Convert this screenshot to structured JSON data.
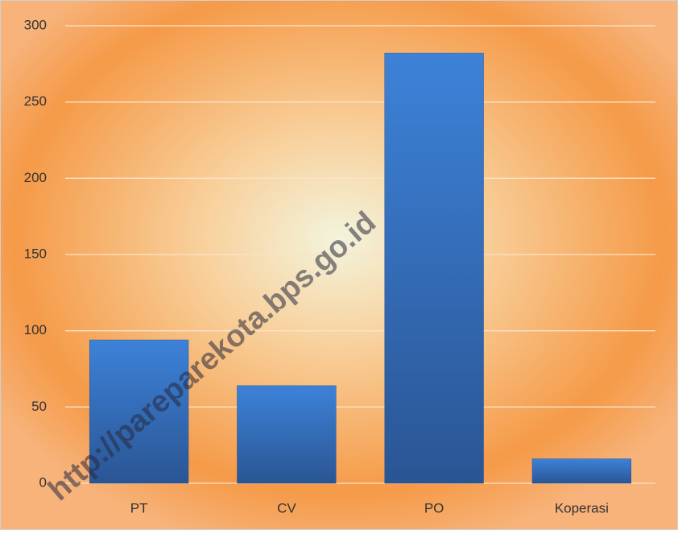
{
  "chart_data": {
    "type": "bar",
    "categories": [
      "PT",
      "CV",
      "PO",
      "Koperasi"
    ],
    "values": [
      94,
      64,
      282,
      16
    ],
    "color": "#3a78c9",
    "ylim": [
      0,
      300
    ],
    "yticks": [
      0,
      50,
      100,
      150,
      200,
      250,
      300
    ],
    "grid": true,
    "watermark": "http://pareparekota.bps.go.id"
  }
}
